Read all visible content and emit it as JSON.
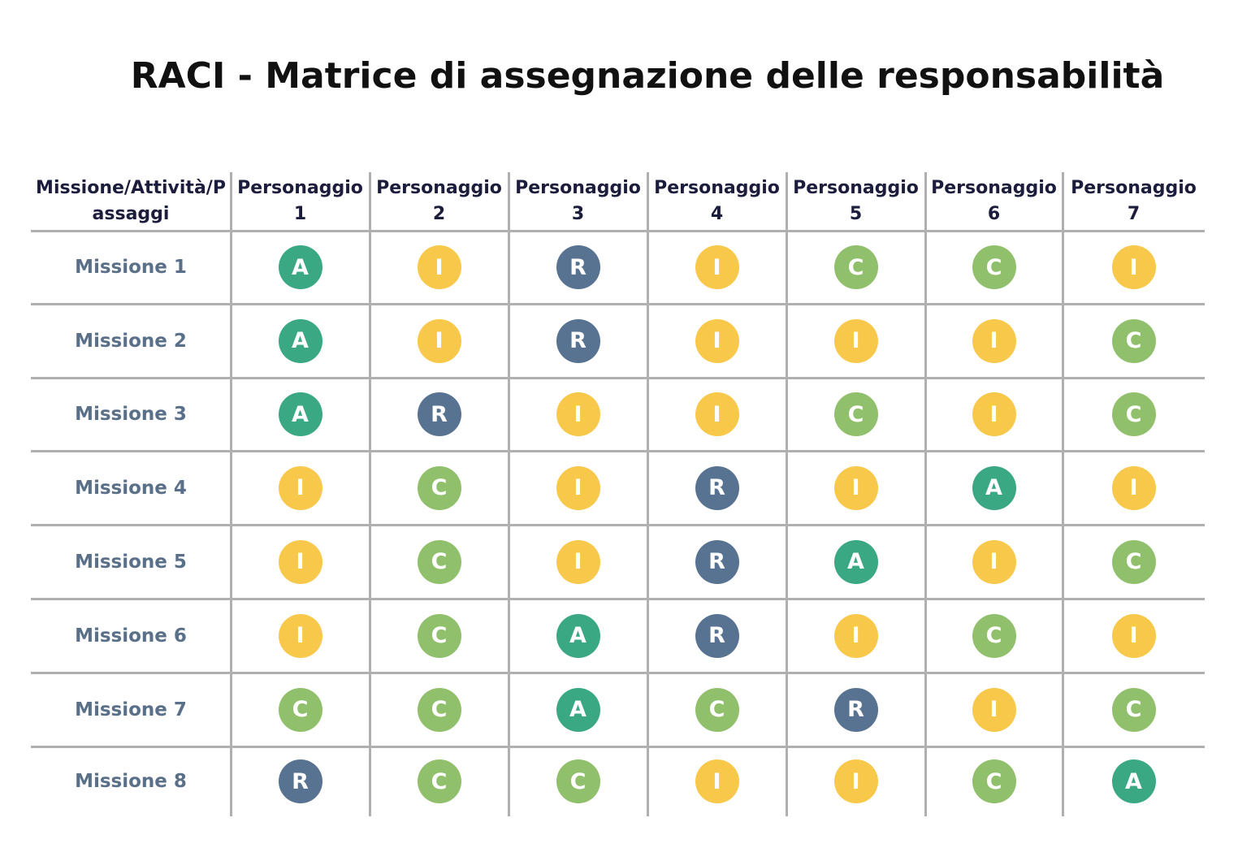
{
  "title": "RACI - Matrice di assegnazione delle responsabilità",
  "table": {
    "header": [
      "Missione/Attività/Passaggi",
      "Personaggio 1",
      "Personaggio 2",
      "Personaggio 3",
      "Personaggio 4",
      "Personaggio 5",
      "Personaggio 6",
      "Personaggio 7"
    ],
    "rows": [
      [
        "Missione 1",
        "A",
        "I",
        "R",
        "I",
        "C",
        "C",
        "I"
      ],
      [
        "Missione 2",
        "A",
        "I",
        "R",
        "I",
        "I",
        "I",
        "C"
      ],
      [
        "Missione 3",
        "A",
        "R",
        "I",
        "I",
        "C",
        "I",
        "C"
      ],
      [
        "Missione 4",
        "I",
        "C",
        "I",
        "R",
        "I",
        "A",
        "I"
      ],
      [
        "Missione 5",
        "I",
        "C",
        "I",
        "R",
        "A",
        "I",
        "C"
      ],
      [
        "Missione 6",
        "I",
        "C",
        "A",
        "R",
        "I",
        "C",
        "I"
      ],
      [
        "Missione 7",
        "C",
        "C",
        "A",
        "C",
        "R",
        "I",
        "C"
      ],
      [
        "Missione 8",
        "R",
        "C",
        "C",
        "I",
        "I",
        "C",
        "A"
      ]
    ],
    "colors": {
      "A": "#3ba884",
      "R": "#587391",
      "I": "#f8c84b",
      "C": "#90c06c"
    }
  }
}
